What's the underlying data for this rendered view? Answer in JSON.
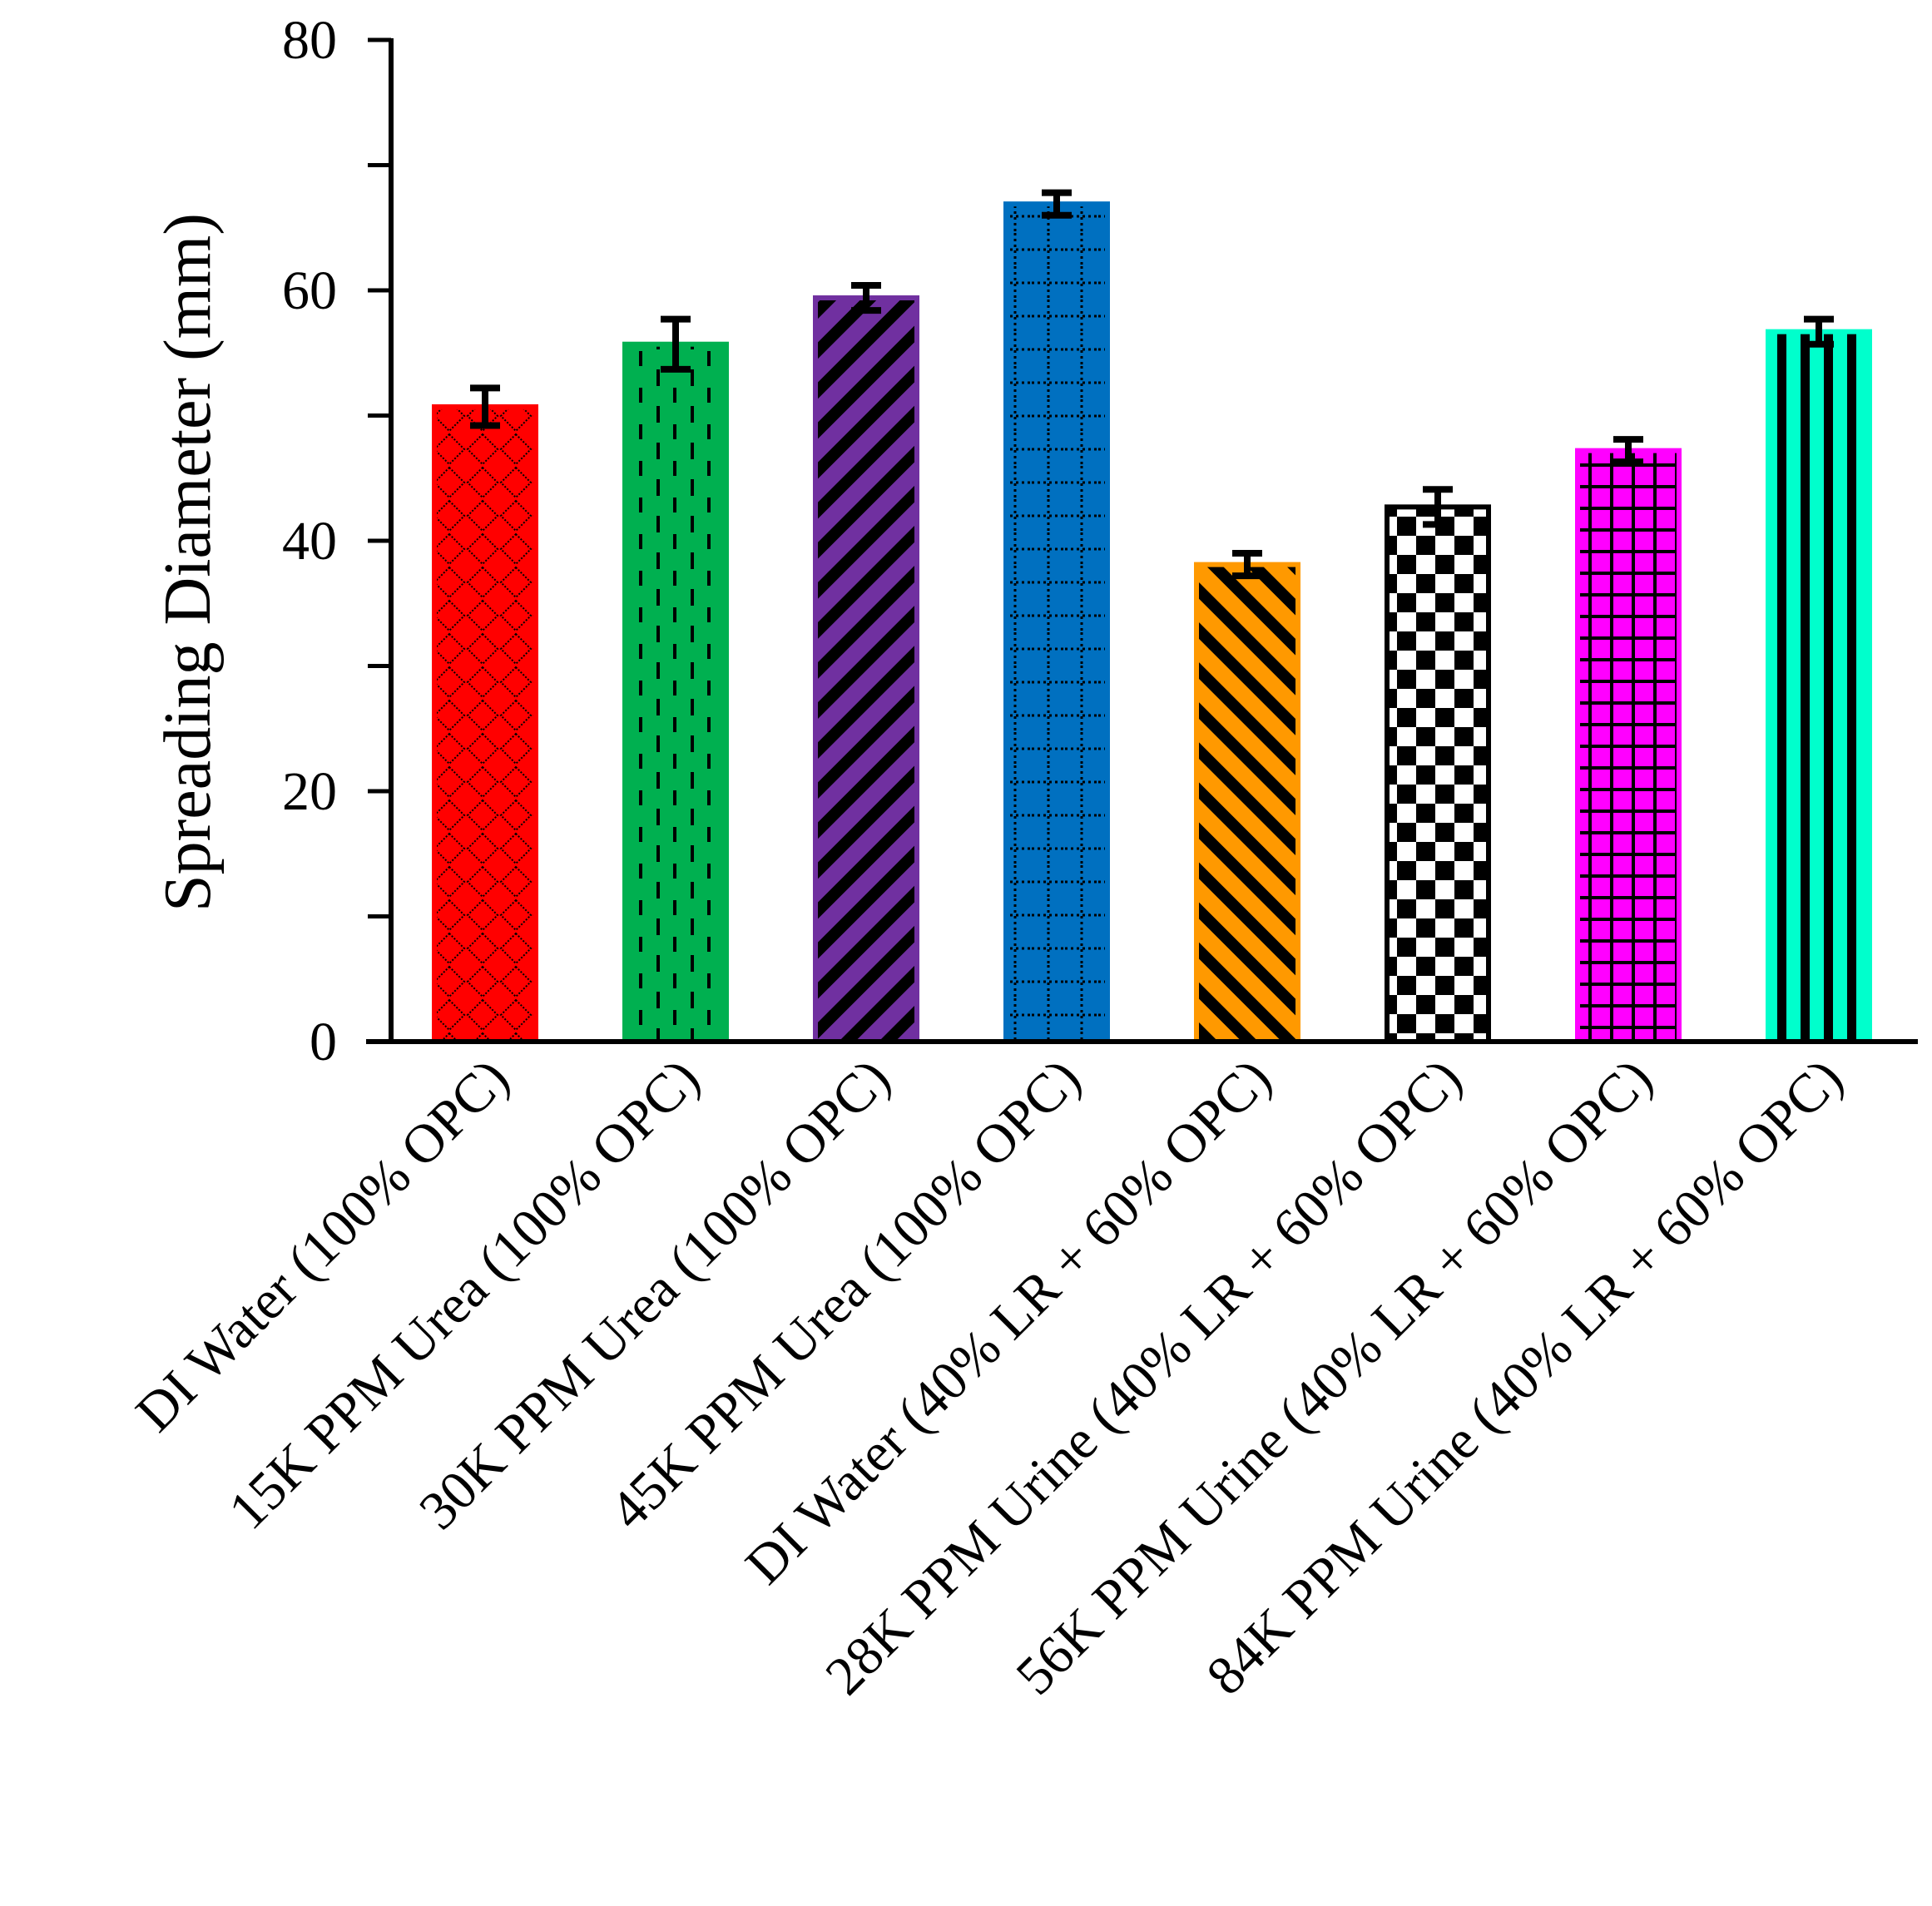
{
  "chart_data": {
    "type": "bar",
    "title": "",
    "xlabel": "",
    "ylabel": "Spreading Diameter (mm)",
    "ylim": [
      0,
      80
    ],
    "yticks": [
      0,
      20,
      40,
      60,
      80
    ],
    "grid": false,
    "categories": [
      "DI Water (100% OPC)",
      "15K PPM Urea (100% OPC)",
      "30K PPM Urea (100% OPC)",
      "45K PPM Urea (100% OPC)",
      "DI Water (40% LR + 60% OPC)",
      "28K PPM Urine (40% LR + 60% OPC)",
      "56K PPM Urine (40% LR + 60% OPC)",
      "84K PPM Urine (40% LR + 60% OPC)"
    ],
    "values": [
      50.7,
      55.7,
      59.4,
      66.9,
      38.1,
      42.7,
      47.2,
      56.7
    ],
    "errors": [
      1.5,
      2.0,
      1.0,
      0.9,
      0.9,
      1.4,
      0.9,
      1.0
    ],
    "colors": [
      "#ff0000",
      "#00b050",
      "#7030a0",
      "#0070c0",
      "#ff9900",
      "#ffffff",
      "#ff00ff",
      "#00ffcc"
    ],
    "patterns": [
      "diamond-lattice",
      "dashed-vertical",
      "wide-upward-diagonal",
      "dotted-grid",
      "wide-downward-diagonal",
      "checkerboard",
      "grid",
      "wide-vertical"
    ]
  }
}
